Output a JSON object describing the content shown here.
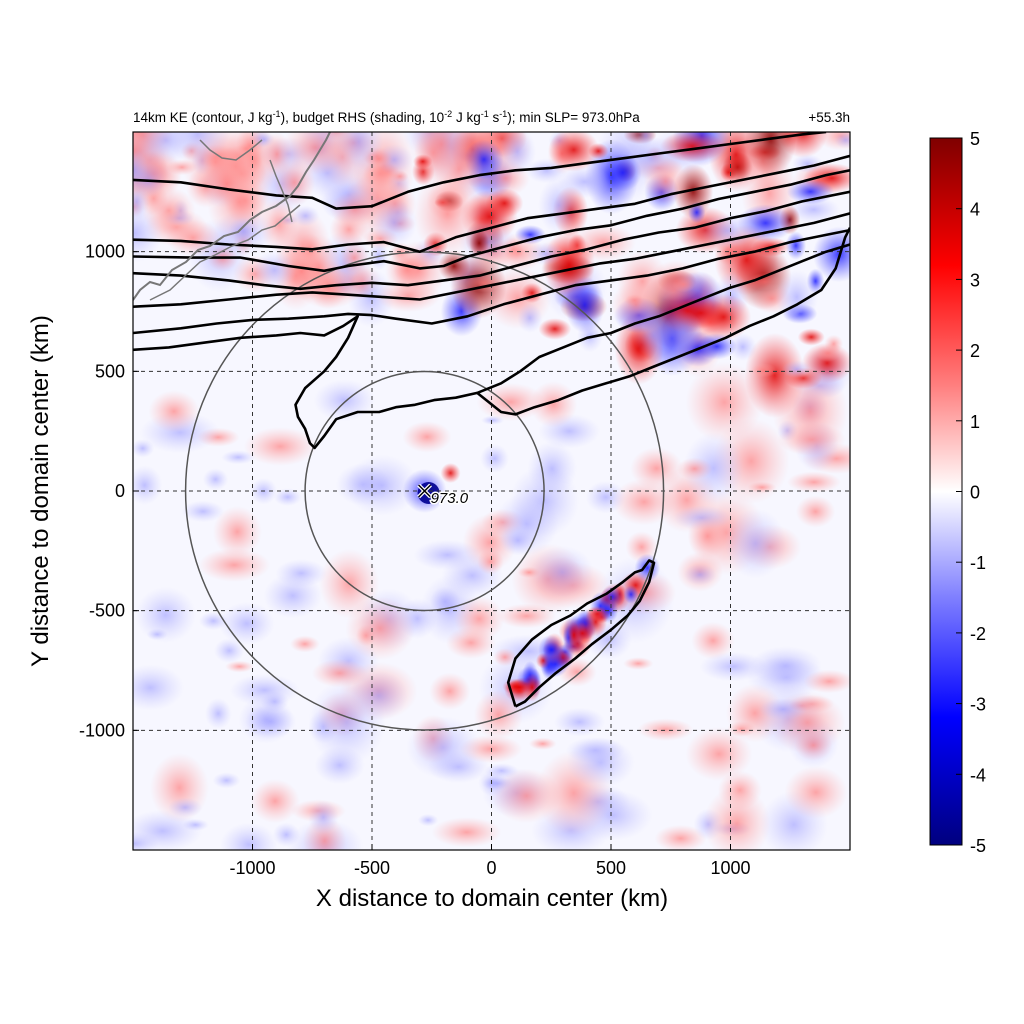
{
  "chart_data": {
    "type": "heatmap",
    "title_left_parts": [
      {
        "t": "14km KE (contour, J kg"
      },
      {
        "t": "-1",
        "sup": true
      },
      {
        "t": "), budget RHS (shading, 10"
      },
      {
        "t": "-2",
        "sup": true
      },
      {
        "t": " J kg"
      },
      {
        "t": "-1",
        "sup": true
      },
      {
        "t": " s"
      },
      {
        "t": "-1",
        "sup": true
      },
      {
        "t": "); min SLP= 973.0hPa"
      }
    ],
    "title_right": "+55.3h",
    "xlabel": "X distance to domain center (km)",
    "ylabel": "Y distance to domain center (km)",
    "xlim": [
      -1500,
      1500
    ],
    "ylim": [
      -1500,
      1500
    ],
    "xticks": [
      -1000,
      -500,
      0,
      500,
      1000
    ],
    "yticks": [
      -1000,
      -500,
      0,
      500,
      1000
    ],
    "grid": true,
    "colorbar": {
      "min": -5,
      "max": 5,
      "ticks": [
        5,
        4,
        3,
        2,
        1,
        0,
        -1,
        -2,
        -3,
        -4,
        -5
      ],
      "colors": [
        "#00007f",
        "#0000ff",
        "#7f7fff",
        "#ffffff",
        "#ff7f7f",
        "#ff0000",
        "#7f0000"
      ]
    },
    "storm_center": {
      "x": -280,
      "y": 0,
      "label": "973.0",
      "marker": "x"
    },
    "range_circles_km": [
      500,
      1000
    ],
    "ke_contours": [
      [
        [
          -1500,
          1300
        ],
        [
          -1300,
          1290
        ],
        [
          -1100,
          1260
        ],
        [
          -900,
          1235
        ],
        [
          -750,
          1225
        ],
        [
          -650,
          1180
        ],
        [
          -500,
          1190
        ],
        [
          -350,
          1250
        ],
        [
          -200,
          1290
        ],
        [
          -50,
          1320
        ],
        [
          100,
          1340
        ],
        [
          250,
          1350
        ],
        [
          400,
          1370
        ],
        [
          550,
          1390
        ],
        [
          700,
          1410
        ],
        [
          850,
          1430
        ],
        [
          1000,
          1450
        ],
        [
          1150,
          1470
        ],
        [
          1300,
          1490
        ],
        [
          1400,
          1500
        ]
      ],
      [
        [
          -1500,
          1050
        ],
        [
          -1300,
          1045
        ],
        [
          -1100,
          1030
        ],
        [
          -900,
          1020
        ],
        [
          -750,
          1010
        ],
        [
          -600,
          1030
        ],
        [
          -450,
          1040
        ],
        [
          -300,
          1000
        ],
        [
          -150,
          1060
        ],
        [
          0,
          1100
        ],
        [
          150,
          1140
        ],
        [
          300,
          1160
        ],
        [
          450,
          1180
        ],
        [
          600,
          1200
        ],
        [
          750,
          1240
        ],
        [
          900,
          1270
        ],
        [
          1050,
          1300
        ],
        [
          1200,
          1330
        ],
        [
          1350,
          1360
        ],
        [
          1500,
          1400
        ]
      ],
      [
        [
          -1500,
          980
        ],
        [
          -1250,
          975
        ],
        [
          -1050,
          975
        ],
        [
          -850,
          940
        ],
        [
          -700,
          920
        ],
        [
          -600,
          940
        ],
        [
          -450,
          960
        ],
        [
          -300,
          930
        ],
        [
          -200,
          940
        ],
        [
          -100,
          980
        ],
        [
          50,
          1020
        ],
        [
          200,
          1060
        ],
        [
          350,
          1090
        ],
        [
          500,
          1110
        ],
        [
          650,
          1150
        ],
        [
          800,
          1180
        ],
        [
          950,
          1220
        ],
        [
          1100,
          1250
        ],
        [
          1250,
          1280
        ],
        [
          1400,
          1320
        ],
        [
          1500,
          1340
        ]
      ],
      [
        [
          -1500,
          910
        ],
        [
          -1300,
          900
        ],
        [
          -1100,
          880
        ],
        [
          -950,
          860
        ],
        [
          -800,
          845
        ],
        [
          -650,
          860
        ],
        [
          -500,
          870
        ],
        [
          -350,
          860
        ],
        [
          -200,
          880
        ],
        [
          -50,
          900
        ],
        [
          100,
          940
        ],
        [
          250,
          980
        ],
        [
          400,
          1010
        ],
        [
          550,
          1050
        ],
        [
          700,
          1080
        ],
        [
          850,
          1100
        ],
        [
          1000,
          1140
        ],
        [
          1150,
          1170
        ],
        [
          1300,
          1210
        ],
        [
          1500,
          1250
        ]
      ],
      [
        [
          -1500,
          770
        ],
        [
          -1300,
          780
        ],
        [
          -1100,
          800
        ],
        [
          -900,
          820
        ],
        [
          -750,
          830
        ],
        [
          -600,
          820
        ],
        [
          -450,
          810
        ],
        [
          -300,
          800
        ],
        [
          -150,
          830
        ],
        [
          0,
          860
        ],
        [
          150,
          890
        ],
        [
          300,
          920
        ],
        [
          450,
          950
        ],
        [
          600,
          970
        ],
        [
          750,
          1000
        ],
        [
          900,
          1030
        ],
        [
          1050,
          1060
        ],
        [
          1200,
          1090
        ],
        [
          1350,
          1120
        ],
        [
          1500,
          1160
        ]
      ],
      [
        [
          -1500,
          660
        ],
        [
          -1300,
          680
        ],
        [
          -1150,
          700
        ],
        [
          -1000,
          715
        ],
        [
          -850,
          720
        ],
        [
          -700,
          730
        ],
        [
          -600,
          740
        ],
        [
          -500,
          735
        ],
        [
          -400,
          720
        ],
        [
          -250,
          700
        ],
        [
          -100,
          730
        ],
        [
          50,
          780
        ],
        [
          200,
          820
        ],
        [
          350,
          860
        ],
        [
          500,
          880
        ],
        [
          650,
          900
        ],
        [
          800,
          930
        ],
        [
          950,
          970
        ],
        [
          1100,
          1000
        ],
        [
          1250,
          1040
        ],
        [
          1400,
          1070
        ],
        [
          1500,
          1090
        ]
      ],
      [
        [
          -1500,
          590
        ],
        [
          -1350,
          600
        ],
        [
          -1200,
          620
        ],
        [
          -1050,
          640
        ],
        [
          -900,
          650
        ],
        [
          -800,
          660
        ],
        [
          -700,
          650
        ],
        [
          -620,
          690
        ],
        [
          -560,
          730
        ],
        [
          -600,
          640
        ],
        [
          -650,
          560
        ],
        [
          -700,
          500
        ],
        [
          -780,
          430
        ],
        [
          -820,
          360
        ],
        [
          -810,
          310
        ],
        [
          -780,
          260
        ],
        [
          -760,
          200
        ],
        [
          -740,
          180
        ],
        [
          -700,
          230
        ],
        [
          -650,
          300
        ],
        [
          -560,
          330
        ],
        [
          -470,
          330
        ],
        [
          -400,
          350
        ],
        [
          -320,
          360
        ],
        [
          -240,
          380
        ],
        [
          -150,
          390
        ],
        [
          -60,
          410
        ],
        [
          40,
          450
        ],
        [
          120,
          500
        ],
        [
          200,
          560
        ],
        [
          300,
          600
        ],
        [
          400,
          640
        ],
        [
          500,
          660
        ],
        [
          600,
          700
        ],
        [
          700,
          730
        ],
        [
          800,
          770
        ],
        [
          900,
          810
        ],
        [
          1000,
          850
        ],
        [
          1100,
          880
        ],
        [
          1200,
          920
        ],
        [
          1300,
          960
        ],
        [
          1400,
          1000
        ],
        [
          1500,
          1030
        ]
      ],
      [
        [
          -60,
          410
        ],
        [
          40,
          330
        ],
        [
          100,
          320
        ],
        [
          180,
          350
        ],
        [
          280,
          380
        ],
        [
          380,
          420
        ],
        [
          480,
          450
        ],
        [
          580,
          480
        ],
        [
          680,
          520
        ],
        [
          780,
          560
        ],
        [
          880,
          600
        ],
        [
          980,
          640
        ],
        [
          1080,
          690
        ],
        [
          1180,
          730
        ],
        [
          1280,
          780
        ],
        [
          1380,
          840
        ],
        [
          1440,
          930
        ],
        [
          1480,
          1060
        ],
        [
          1500,
          1100
        ]
      ],
      [
        [
          100,
          -900
        ],
        [
          70,
          -800
        ],
        [
          100,
          -700
        ],
        [
          170,
          -620
        ],
        [
          250,
          -560
        ],
        [
          330,
          -520
        ],
        [
          400,
          -470
        ],
        [
          480,
          -430
        ],
        [
          550,
          -380
        ],
        [
          600,
          -340
        ],
        [
          630,
          -330
        ],
        [
          660,
          -290
        ],
        [
          680,
          -300
        ],
        [
          660,
          -380
        ],
        [
          620,
          -460
        ],
        [
          570,
          -520
        ],
        [
          500,
          -580
        ],
        [
          420,
          -640
        ],
        [
          350,
          -700
        ],
        [
          270,
          -760
        ],
        [
          200,
          -820
        ],
        [
          140,
          -880
        ],
        [
          100,
          -900
        ]
      ]
    ]
  }
}
